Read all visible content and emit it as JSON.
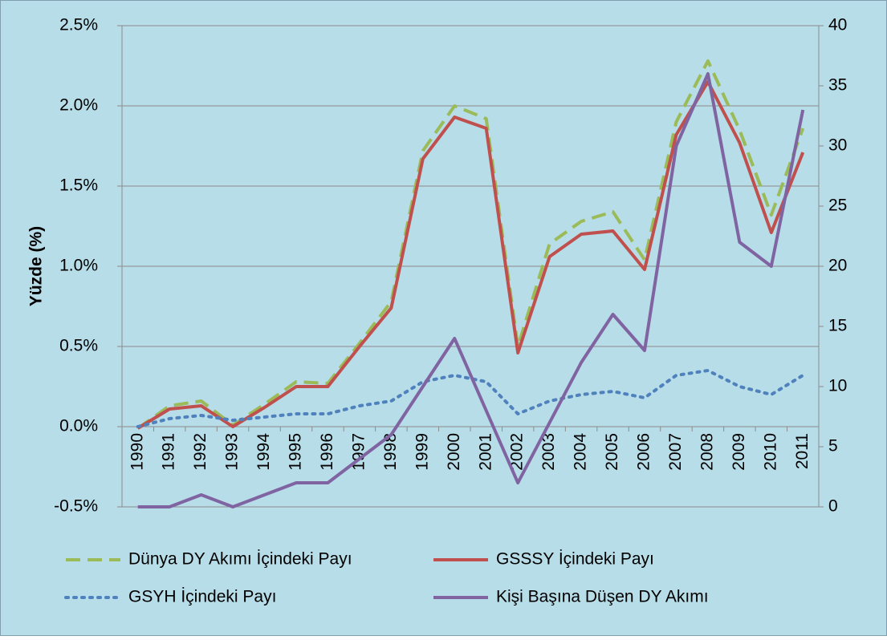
{
  "chart_data": {
    "type": "line",
    "y_label": "Yüzde  (%)",
    "categories": [
      "1990",
      "1991",
      "1992",
      "1993",
      "1994",
      "1995",
      "1996",
      "1997",
      "1998",
      "1999",
      "2000",
      "2001",
      "2002",
      "2003",
      "2004",
      "2005",
      "2006",
      "2007",
      "2008",
      "2009",
      "2010",
      "2011"
    ],
    "series": [
      {
        "name": "Dünya DY Akımı İçindeki Payı",
        "color": "#9bbb59",
        "style": "dashed",
        "values": [
          -0.01,
          0.13,
          0.16,
          0.01,
          0.14,
          0.28,
          0.27,
          0.52,
          0.78,
          1.72,
          2.0,
          1.92,
          0.5,
          1.14,
          1.28,
          1.34,
          1.04,
          1.9,
          2.28,
          1.85,
          1.32,
          1.86
        ]
      },
      {
        "name": "GSSSY İçindeki Payı",
        "color": "#c0504d",
        "style": "solid",
        "values": [
          -0.01,
          0.11,
          0.13,
          0.0,
          0.12,
          0.25,
          0.25,
          0.5,
          0.74,
          1.67,
          1.93,
          1.86,
          0.46,
          1.06,
          1.2,
          1.22,
          0.98,
          1.82,
          2.15,
          1.77,
          1.21,
          1.71
        ]
      },
      {
        "name": "GSYH İçindeki Payı",
        "color": "#4f81bd",
        "style": "dotted",
        "values": [
          0.0,
          0.05,
          0.07,
          0.04,
          0.06,
          0.08,
          0.08,
          0.13,
          0.16,
          0.28,
          0.32,
          0.28,
          0.08,
          0.16,
          0.2,
          0.22,
          0.18,
          0.32,
          0.35,
          0.25,
          0.2,
          0.32
        ]
      },
      {
        "name": "Kişi Başına Düşen DY Akımı",
        "color": "#8064a2",
        "style": "solid",
        "axis": "y2",
        "values": [
          0,
          0,
          1,
          0,
          1,
          2,
          2,
          4,
          6,
          10,
          14,
          8,
          2,
          7,
          12,
          16,
          13,
          30,
          36,
          22,
          20,
          33
        ]
      }
    ],
    "ylim": [
      -0.5,
      2.5
    ],
    "yticks": [
      {
        "value": -0.5,
        "label": "-0.5%"
      },
      {
        "value": 0,
        "label": "0.0%"
      },
      {
        "value": 0.5,
        "label": "0.5%"
      },
      {
        "value": 1,
        "label": "1.0%"
      },
      {
        "value": 1.5,
        "label": "1.5%"
      },
      {
        "value": 2,
        "label": "2.0%"
      },
      {
        "value": 2.5,
        "label": "2.5%"
      }
    ],
    "y2lim": [
      0,
      40
    ],
    "y2ticks": [
      0,
      5,
      10,
      15,
      20,
      25,
      30,
      35,
      40
    ],
    "grid": true,
    "legend": "bottom"
  }
}
